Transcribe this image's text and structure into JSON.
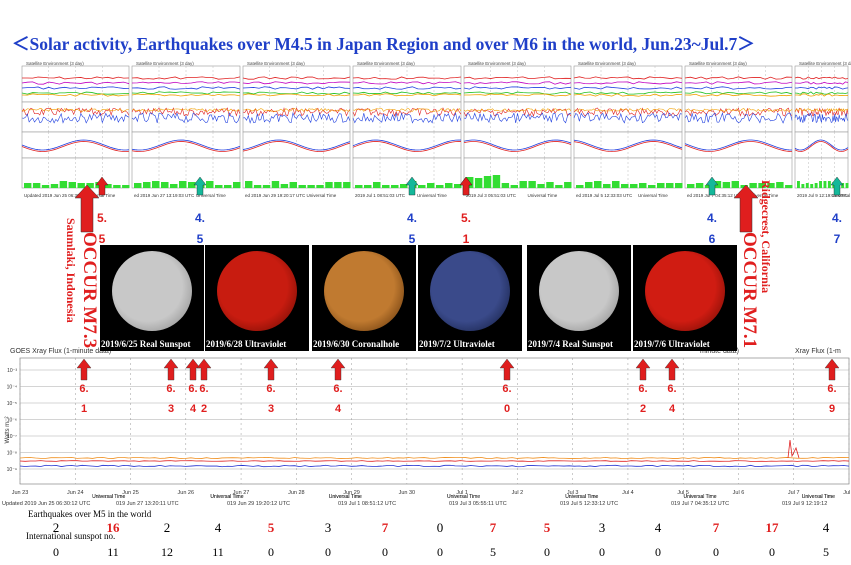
{
  "title": "＜Solar activity, Earthquakes over M4.5 in Japan Region and over M6 in the world, Jun.23~Jul.7＞",
  "satellite_panel": {
    "panel_title": "Satellite Environment (3 day)",
    "footer_label": "Updated",
    "footer_axis": "Universal Time",
    "footer_times": [
      "Updated 2019 Jun 25 06:30:12 UTC",
      "ed 2019 Jun 27 13:19:03 UTC",
      "ed 2019 Jun 29 19:20:17 UTC",
      "2019 Jul 1 08:51:03 UTC",
      "2019 Jul 3 05:51:03 UTC",
      "ed 2019 Jul 5 12:33:03 UTC",
      "ed 2019 Jul 7 04:35:12 UTC",
      "2019 Jul 9 12:19:03 UTC"
    ]
  },
  "japan_quakes": [
    {
      "m": "5",
      "d": "5",
      "color": "#e01e1e"
    },
    {
      "m": "4",
      "d": "5",
      "color": "#1f3fc8"
    },
    {
      "m": "4",
      "d": "5",
      "color": "#1f3fc8"
    },
    {
      "m": "5",
      "d": "1",
      "color": "#e01e1e"
    },
    {
      "m": "4",
      "d": "6",
      "color": "#1f3fc8"
    },
    {
      "m": "4",
      "d": "7",
      "color": "#1f3fc8"
    }
  ],
  "big_quakes": [
    {
      "label": "OCCUR M7.3",
      "place": "Saumlaki, Indonesia"
    },
    {
      "label": "OCCUR M7.1",
      "place": "Ridgecrest, California"
    }
  ],
  "photos": [
    {
      "caption": "2019/6/25 Real Sunspot",
      "color": "#c8c8c8",
      "edge": "#7a7a7a"
    },
    {
      "caption": "2019/6/28 Ultraviolet",
      "color": "#c81c10",
      "edge": "#5a0800"
    },
    {
      "caption": "2019/6/30 Coronalhole",
      "color": "#c07a30",
      "edge": "#4a2300"
    },
    {
      "caption": "2019/7/2 Ultraviolet",
      "color": "#3a4a8a",
      "edge": "#0a1230"
    },
    {
      "caption": "2019/7/4 Real Sunspot",
      "color": "#c8c8c8",
      "edge": "#7a7a7a"
    },
    {
      "caption": "2019/7/6 Ultraviolet",
      "color": "#d01c12",
      "edge": "#5a0800"
    }
  ],
  "xray_panel": {
    "title_left": "GOES Xray Flux (1-minute data)",
    "title_mid": "minute data)",
    "title_right": "Xray Flux (1-m",
    "ylabel": "Watts m⁻²",
    "xlabel": "Universal Time",
    "ticks": [
      "Jun 23",
      "Jun 24",
      "Jun 25",
      "Jun 26",
      "Jun 27",
      "Jun 28",
      "Jun 29",
      "Jun 30",
      "Jul 1",
      "Jul 2",
      "Jul 3",
      "Jul 4",
      "Jul 5",
      "Jul 6",
      "Jul 7",
      "Jul 8"
    ],
    "footer_times": [
      "Updated 2019 Jun 25 06:30:12 UTC",
      "019 Jun 27 13:20:11 UTC",
      "019 Jun 29 19:20:12 UTC",
      "019 Jul 1 08:51:12 UTC",
      "019 Jul 3 05:55:11 UTC",
      "019 Jul 5 12:33:12 UTC",
      "019 Jul 7 04:35:12 UTC",
      "019 Jul 9 12:19:12"
    ]
  },
  "world_quakes": [
    {
      "m": "6",
      "d": "1"
    },
    {
      "m": "6",
      "d": "3"
    },
    {
      "m": "6",
      "d": "4"
    },
    {
      "m": "6",
      "d": "2"
    },
    {
      "m": "6",
      "d": "3"
    },
    {
      "m": "6",
      "d": "4"
    },
    {
      "m": "6",
      "d": "0"
    },
    {
      "m": "6",
      "d": "2"
    },
    {
      "m": "6",
      "d": "4"
    },
    {
      "m": "6",
      "d": "9"
    }
  ],
  "quake_row_label": "Earthquakes over M5 in the world",
  "sunspot_row_label": "International sunspot no.",
  "chart_data": {
    "type": "table",
    "categories": [
      "Jun 23",
      "Jun 24",
      "Jun 25",
      "Jun 26",
      "Jun 27",
      "Jun 28",
      "Jun 29",
      "Jun 30",
      "Jul 1",
      "Jul 2",
      "Jul 3",
      "Jul 4",
      "Jul 5",
      "Jul 6",
      "Jul 7"
    ],
    "series": [
      {
        "name": "Earthquakes over M5 in the world",
        "values": [
          2,
          16,
          2,
          4,
          5,
          3,
          7,
          0,
          7,
          5,
          3,
          4,
          7,
          17,
          4
        ],
        "highlight": [
          false,
          true,
          false,
          false,
          true,
          false,
          true,
          false,
          true,
          true,
          false,
          false,
          true,
          true,
          false
        ]
      },
      {
        "name": "International sunspot no.",
        "values": [
          0,
          11,
          12,
          11,
          0,
          0,
          0,
          0,
          5,
          0,
          0,
          0,
          0,
          0,
          5
        ]
      }
    ]
  }
}
